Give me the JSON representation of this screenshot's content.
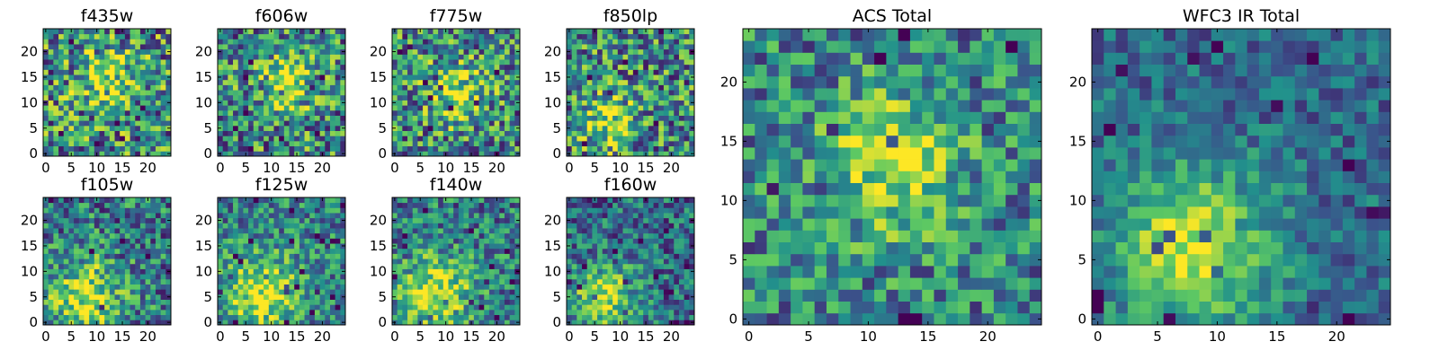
{
  "figure": {
    "colormap": [
      "#440154",
      "#3b528b",
      "#21918c",
      "#5ec962",
      "#fde725"
    ]
  },
  "chart_data": [
    {
      "type": "heatmap",
      "title": "f435w",
      "grid_size": [
        25,
        25
      ],
      "xlim": [
        0,
        24
      ],
      "ylim": [
        0,
        24
      ],
      "xticks": [
        0,
        5,
        10,
        15,
        20
      ],
      "yticks": [
        0,
        5,
        10,
        15,
        20
      ],
      "grid": false,
      "pattern": {
        "peak": [
          12,
          15
        ],
        "sigma": 4,
        "amp": 0.35,
        "base": 0.5,
        "noise": 0.45,
        "seed": 11
      }
    },
    {
      "type": "heatmap",
      "title": "f606w",
      "grid_size": [
        25,
        25
      ],
      "xlim": [
        0,
        24
      ],
      "ylim": [
        0,
        24
      ],
      "xticks": [
        0,
        5,
        10,
        15,
        20
      ],
      "yticks": [
        0,
        5,
        10,
        15,
        20
      ],
      "grid": false,
      "pattern": {
        "peak": [
          13,
          14
        ],
        "sigma": 4,
        "amp": 0.4,
        "base": 0.48,
        "noise": 0.42,
        "seed": 23
      }
    },
    {
      "type": "heatmap",
      "title": "f775w",
      "grid_size": [
        25,
        25
      ],
      "xlim": [
        0,
        24
      ],
      "ylim": [
        0,
        24
      ],
      "xticks": [
        0,
        5,
        10,
        15,
        20
      ],
      "yticks": [
        0,
        5,
        10,
        15,
        20
      ],
      "grid": false,
      "pattern": {
        "peak": [
          12,
          12
        ],
        "sigma": 4,
        "amp": 0.4,
        "base": 0.48,
        "noise": 0.42,
        "seed": 37
      }
    },
    {
      "type": "heatmap",
      "title": "f850lp",
      "grid_size": [
        25,
        25
      ],
      "xlim": [
        0,
        24
      ],
      "ylim": [
        0,
        24
      ],
      "xticks": [
        0,
        5,
        10,
        15,
        20
      ],
      "yticks": [
        0,
        5,
        10,
        15,
        20
      ],
      "grid": false,
      "pattern": {
        "peak": [
          8,
          6
        ],
        "sigma": 3.5,
        "amp": 0.4,
        "base": 0.48,
        "noise": 0.42,
        "seed": 41
      }
    },
    {
      "type": "heatmap",
      "title": "f105w",
      "grid_size": [
        25,
        25
      ],
      "xlim": [
        0,
        24
      ],
      "ylim": [
        0,
        24
      ],
      "xticks": [
        0,
        5,
        10,
        15,
        20
      ],
      "yticks": [
        0,
        5,
        10,
        15,
        20
      ],
      "grid": false,
      "pattern": {
        "peak": [
          8,
          5
        ],
        "sigma": 5,
        "amp": 0.5,
        "base": 0.42,
        "noise": 0.35,
        "seed": 53
      }
    },
    {
      "type": "heatmap",
      "title": "f125w",
      "grid_size": [
        25,
        25
      ],
      "xlim": [
        0,
        24
      ],
      "ylim": [
        0,
        24
      ],
      "xticks": [
        0,
        5,
        10,
        15,
        20
      ],
      "yticks": [
        0,
        5,
        10,
        15,
        20
      ],
      "grid": false,
      "pattern": {
        "peak": [
          8,
          6
        ],
        "sigma": 5,
        "amp": 0.5,
        "base": 0.45,
        "noise": 0.3,
        "seed": 67
      }
    },
    {
      "type": "heatmap",
      "title": "f140w",
      "grid_size": [
        25,
        25
      ],
      "xlim": [
        0,
        24
      ],
      "ylim": [
        0,
        24
      ],
      "xticks": [
        0,
        5,
        10,
        15,
        20
      ],
      "yticks": [
        0,
        5,
        10,
        15,
        20
      ],
      "grid": false,
      "pattern": {
        "peak": [
          8,
          6
        ],
        "sigma": 5,
        "amp": 0.5,
        "base": 0.42,
        "noise": 0.32,
        "seed": 71
      }
    },
    {
      "type": "heatmap",
      "title": "f160w",
      "grid_size": [
        25,
        25
      ],
      "xlim": [
        0,
        24
      ],
      "ylim": [
        0,
        24
      ],
      "xticks": [
        0,
        5,
        10,
        15,
        20
      ],
      "yticks": [
        0,
        5,
        10,
        15,
        20
      ],
      "grid": false,
      "pattern": {
        "peak": [
          7,
          5
        ],
        "sigma": 4.5,
        "amp": 0.55,
        "base": 0.35,
        "noise": 0.3,
        "seed": 83
      }
    },
    {
      "type": "heatmap",
      "title": "ACS Total",
      "grid_size": [
        25,
        25
      ],
      "xlim": [
        0,
        24
      ],
      "ylim": [
        0,
        24
      ],
      "xticks": [
        0,
        5,
        10,
        15,
        20
      ],
      "yticks": [
        0,
        5,
        10,
        15,
        20
      ],
      "grid": false,
      "pattern": {
        "peak": [
          12,
          13
        ],
        "sigma": 4,
        "amp": 0.45,
        "base": 0.45,
        "noise": 0.32,
        "seed": 97
      }
    },
    {
      "type": "heatmap",
      "title": "WFC3 IR Total",
      "grid_size": [
        25,
        25
      ],
      "xlim": [
        0,
        24
      ],
      "ylim": [
        0,
        24
      ],
      "xticks": [
        0,
        5,
        10,
        15,
        20
      ],
      "yticks": [
        0,
        5,
        10,
        15,
        20
      ],
      "grid": false,
      "pattern": {
        "peak": [
          8,
          6
        ],
        "sigma": 4.5,
        "amp": 0.6,
        "base": 0.35,
        "noise": 0.2,
        "seed": 101
      }
    }
  ]
}
